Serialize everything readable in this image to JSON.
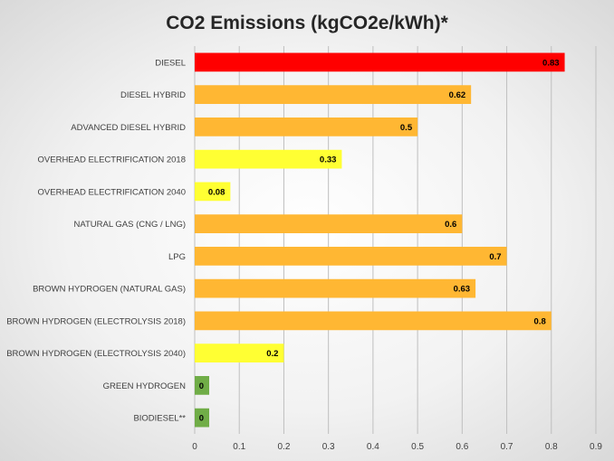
{
  "chart_data": {
    "type": "bar",
    "orientation": "horizontal",
    "title": "CO2 Emissions (kgCO2e/kWh)*",
    "xlabel": "",
    "ylabel": "",
    "categories": [
      "DIESEL",
      "DIESEL HYBRID",
      "ADVANCED DIESEL HYBRID",
      "OVERHEAD ELECTRIFICATION 2018",
      "OVERHEAD ELECTRIFICATION 2040",
      "NATURAL GAS (CNG / LNG)",
      "LPG",
      "BROWN HYDROGEN (NATURAL GAS)",
      "BROWN HYDROGEN (ELECTROLYSIS 2018)",
      "BROWN HYDROGEN (ELECTROLYSIS 2040)",
      "GREEN HYDROGEN",
      "BIODIESEL**"
    ],
    "values": [
      0.83,
      0.62,
      0.5,
      0.33,
      0.08,
      0.6,
      0.7,
      0.63,
      0.8,
      0.2,
      0,
      0
    ],
    "value_labels": [
      "0.83",
      "0.62",
      "0.5",
      "0.33",
      "0.08",
      "0.6",
      "0.7",
      "0.63",
      "0.8",
      "0.2",
      "0",
      "0"
    ],
    "bar_colors": [
      "#ff0000",
      "#ffb733",
      "#ffb733",
      "#ffff33",
      "#ffff33",
      "#ffb733",
      "#ffb733",
      "#ffb733",
      "#ffb733",
      "#ffff33",
      "#70ad47",
      "#70ad47"
    ],
    "xlim": [
      0,
      0.9
    ],
    "xticks": [
      0,
      0.1,
      0.2,
      0.3,
      0.4,
      0.5,
      0.6,
      0.7,
      0.8,
      0.9
    ],
    "xtick_labels": [
      "0",
      "0.1",
      "0.2",
      "0.3",
      "0.4",
      "0.5",
      "0.6",
      "0.7",
      "0.8",
      "0.9"
    ],
    "grid": "vertical",
    "legend": "none"
  }
}
